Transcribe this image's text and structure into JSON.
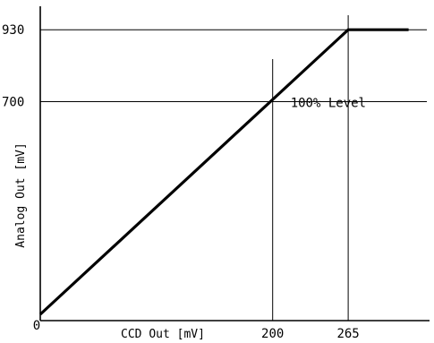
{
  "chart_data": {
    "type": "line",
    "title": "",
    "xlabel": "CCD Out [mV]",
    "ylabel": "Analog Out [mV]",
    "xlim": [
      0,
      335
    ],
    "ylim": [
      0,
      1005
    ],
    "origin_label": "0",
    "x_ticks": [
      200,
      265
    ],
    "y_ticks": [
      700,
      930
    ],
    "grid": false,
    "series": [
      {
        "x": [
          0,
          265,
          317
        ],
        "y": [
          20,
          930,
          930
        ]
      }
    ],
    "reference_lines": {
      "vertical": [
        200,
        265
      ],
      "horizontal": [
        700,
        930
      ]
    },
    "annotation": {
      "text": "100% Level",
      "x": 200,
      "y": 700
    }
  },
  "colors": {
    "line": "#000000",
    "axis": "#000000",
    "background": "#ffffff"
  }
}
